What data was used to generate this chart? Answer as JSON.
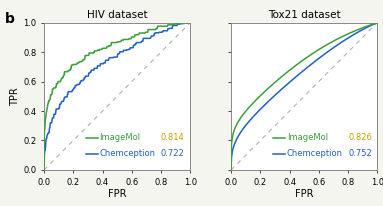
{
  "title_left": "HIV dataset",
  "title_right": "Tox21 dataset",
  "xlabel": "FPR",
  "ylabel": "TPR",
  "label_b": "b",
  "legend_imagemol": "ImageMol",
  "legend_chemception": "Chemception",
  "auc_hiv_imagemol": "0.814",
  "auc_hiv_chemception": "0.722",
  "auc_tox21_imagemol": "0.826",
  "auc_tox21_chemception": "0.752",
  "color_imagemol": "#3a9e3a",
  "color_chemception": "#2060c8",
  "color_diagonal": "#b0b0b0",
  "background_color": "#f5f5f0",
  "title_fontsize": 7.5,
  "label_fontsize": 7,
  "legend_fontsize": 6,
  "tick_fontsize": 6,
  "auc_color_imagemol": "#c8a000",
  "auc_color_chemception": "#2060c8",
  "border_color": "#888888"
}
